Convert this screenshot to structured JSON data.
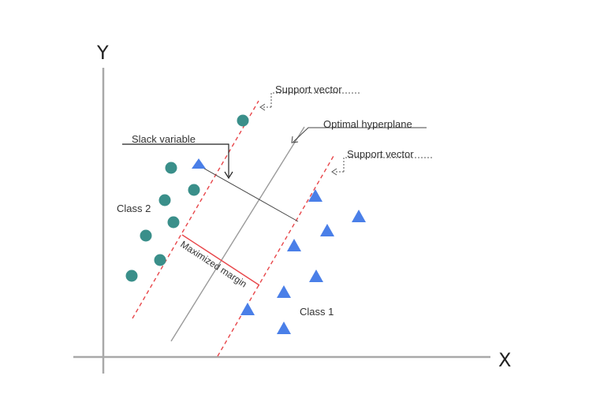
{
  "axes": {
    "x_label": "X",
    "y_label": "Y"
  },
  "labels": {
    "support_vector_top": "Support vector",
    "support_vector_right": "Support vector",
    "optimal_hyperplane": "Optimal hyperplane",
    "slack_variable": "Slack variable",
    "class_2": "Class 2",
    "class_1": "Class 1",
    "maximized_margin": "Maximized margin"
  },
  "colors": {
    "class_2_marker": "#3a8f8a",
    "class_1_marker": "#4a7fe8",
    "margin_line": "#e8464a",
    "hyperplane": "#9a9a9a",
    "axis": "#a9a9a9",
    "annotation": "#222222"
  },
  "chart_data": {
    "type": "scatter",
    "series": [
      {
        "name": "Class 2",
        "marker": "circle"
      },
      {
        "name": "Class 1",
        "marker": "triangle"
      }
    ]
  }
}
